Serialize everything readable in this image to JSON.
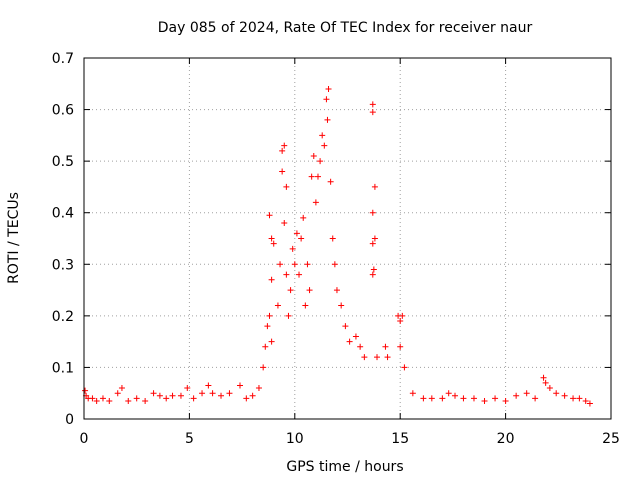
{
  "chart_data": {
    "type": "scatter",
    "title": "Day 085 of 2024, Rate Of TEC Index for receiver naur",
    "xlabel": "GPS time / hours",
    "ylabel": "ROTI / TECUs",
    "xlim": [
      0,
      25
    ],
    "ylim": [
      0,
      0.7
    ],
    "xticks": [
      0,
      5,
      10,
      15,
      20,
      25
    ],
    "yticks": [
      0,
      0.1,
      0.2,
      0.3,
      0.4,
      0.5,
      0.6,
      0.7
    ],
    "xtick_labels": [
      "0",
      "5",
      "10",
      "15",
      "20",
      "25"
    ],
    "ytick_labels": [
      "0",
      "0.1",
      "0.2",
      "0.3",
      "0.4",
      "0.5",
      "0.6",
      "0.7"
    ],
    "grid": true,
    "marker": "plus",
    "color": "#ff0000",
    "points": [
      [
        0.05,
        0.055
      ],
      [
        0.1,
        0.045
      ],
      [
        0.2,
        0.04
      ],
      [
        0.4,
        0.04
      ],
      [
        0.6,
        0.035
      ],
      [
        0.9,
        0.04
      ],
      [
        1.2,
        0.035
      ],
      [
        1.6,
        0.05
      ],
      [
        1.8,
        0.06
      ],
      [
        2.1,
        0.035
      ],
      [
        2.5,
        0.04
      ],
      [
        2.9,
        0.035
      ],
      [
        3.3,
        0.05
      ],
      [
        3.6,
        0.045
      ],
      [
        3.9,
        0.04
      ],
      [
        4.2,
        0.045
      ],
      [
        4.6,
        0.045
      ],
      [
        4.9,
        0.06
      ],
      [
        5.2,
        0.04
      ],
      [
        5.6,
        0.05
      ],
      [
        5.9,
        0.065
      ],
      [
        6.1,
        0.05
      ],
      [
        6.5,
        0.045
      ],
      [
        6.9,
        0.05
      ],
      [
        7.4,
        0.065
      ],
      [
        7.7,
        0.04
      ],
      [
        8.0,
        0.045
      ],
      [
        8.3,
        0.06
      ],
      [
        8.5,
        0.1
      ],
      [
        8.6,
        0.14
      ],
      [
        8.7,
        0.18
      ],
      [
        8.8,
        0.2
      ],
      [
        8.9,
        0.15
      ],
      [
        8.9,
        0.27
      ],
      [
        8.9,
        0.35
      ],
      [
        8.8,
        0.395
      ],
      [
        9.0,
        0.34
      ],
      [
        9.2,
        0.22
      ],
      [
        9.3,
        0.3
      ],
      [
        9.4,
        0.48
      ],
      [
        9.5,
        0.53
      ],
      [
        9.6,
        0.45
      ],
      [
        9.4,
        0.52
      ],
      [
        9.5,
        0.38
      ],
      [
        9.6,
        0.28
      ],
      [
        9.7,
        0.2
      ],
      [
        9.8,
        0.25
      ],
      [
        9.9,
        0.33
      ],
      [
        10.0,
        0.3
      ],
      [
        10.1,
        0.36
      ],
      [
        10.2,
        0.28
      ],
      [
        10.3,
        0.35
      ],
      [
        10.4,
        0.39
      ],
      [
        10.5,
        0.22
      ],
      [
        10.6,
        0.3
      ],
      [
        10.7,
        0.25
      ],
      [
        10.8,
        0.47
      ],
      [
        10.9,
        0.51
      ],
      [
        11.0,
        0.42
      ],
      [
        11.1,
        0.47
      ],
      [
        11.2,
        0.5
      ],
      [
        11.3,
        0.55
      ],
      [
        11.4,
        0.53
      ],
      [
        11.5,
        0.62
      ],
      [
        11.6,
        0.64
      ],
      [
        11.55,
        0.58
      ],
      [
        11.7,
        0.46
      ],
      [
        11.8,
        0.35
      ],
      [
        11.9,
        0.3
      ],
      [
        12.0,
        0.25
      ],
      [
        12.2,
        0.22
      ],
      [
        12.4,
        0.18
      ],
      [
        12.6,
        0.15
      ],
      [
        12.9,
        0.16
      ],
      [
        13.1,
        0.14
      ],
      [
        13.3,
        0.12
      ],
      [
        13.7,
        0.61
      ],
      [
        13.7,
        0.595
      ],
      [
        13.8,
        0.45
      ],
      [
        13.7,
        0.4
      ],
      [
        13.8,
        0.35
      ],
      [
        13.7,
        0.34
      ],
      [
        13.75,
        0.29
      ],
      [
        13.7,
        0.28
      ],
      [
        13.9,
        0.12
      ],
      [
        14.3,
        0.14
      ],
      [
        14.4,
        0.12
      ],
      [
        14.9,
        0.2
      ],
      [
        15.0,
        0.19
      ],
      [
        15.1,
        0.2
      ],
      [
        15.0,
        0.14
      ],
      [
        15.2,
        0.1
      ],
      [
        15.6,
        0.05
      ],
      [
        16.1,
        0.04
      ],
      [
        16.5,
        0.04
      ],
      [
        17.0,
        0.04
      ],
      [
        17.3,
        0.05
      ],
      [
        17.6,
        0.045
      ],
      [
        18.0,
        0.04
      ],
      [
        18.5,
        0.04
      ],
      [
        19.0,
        0.035
      ],
      [
        19.5,
        0.04
      ],
      [
        20.0,
        0.035
      ],
      [
        20.5,
        0.045
      ],
      [
        21.0,
        0.05
      ],
      [
        21.4,
        0.04
      ],
      [
        21.8,
        0.08
      ],
      [
        21.9,
        0.07
      ],
      [
        22.1,
        0.06
      ],
      [
        22.4,
        0.05
      ],
      [
        22.8,
        0.045
      ],
      [
        23.2,
        0.04
      ],
      [
        23.5,
        0.04
      ],
      [
        23.8,
        0.035
      ],
      [
        24.0,
        0.03
      ]
    ]
  }
}
